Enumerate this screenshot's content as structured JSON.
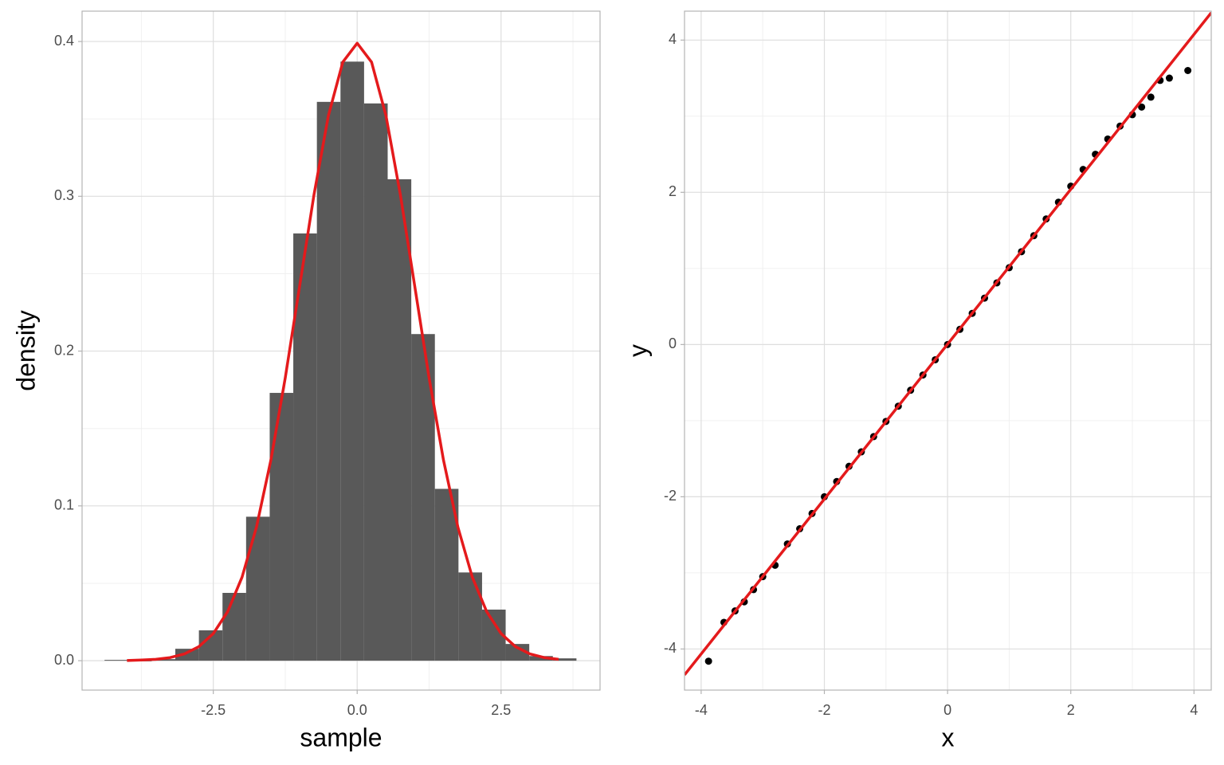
{
  "chart_data": [
    {
      "type": "histogram",
      "x_label": "sample",
      "y_label": "density",
      "bins": [
        -4.39,
        -3.98,
        -3.57,
        -3.16,
        -2.75,
        -2.34,
        -1.93,
        -1.52,
        -1.11,
        -0.7,
        -0.29,
        0.12,
        0.53,
        0.94,
        1.35,
        1.76,
        2.17,
        2.58,
        2.99,
        3.4,
        3.81
      ],
      "values": [
        0.0005,
        0,
        0.001,
        0.0077,
        0.0196,
        0.0438,
        0.093,
        0.173,
        0.276,
        0.361,
        0.387,
        0.36,
        0.311,
        0.211,
        0.111,
        0.057,
        0.033,
        0.0108,
        0.003,
        0.0015
      ],
      "color": "#595959",
      "curve": {
        "color": "#e41a1c",
        "x": [
          -4,
          -3.75,
          -3.5,
          -3.25,
          -3,
          -2.75,
          -2.5,
          -2.25,
          -2,
          -1.75,
          -1.5,
          -1.25,
          -1,
          -0.75,
          -0.5,
          -0.25,
          0,
          0.25,
          0.5,
          0.75,
          1,
          1.25,
          1.5,
          1.75,
          2,
          2.25,
          2.5,
          2.75,
          3,
          3.25,
          3.5
        ],
        "y": [
          0.0001,
          0.0004,
          0.0009,
          0.002,
          0.0044,
          0.0091,
          0.0175,
          0.0317,
          0.054,
          0.0863,
          0.1295,
          0.1826,
          0.242,
          0.3011,
          0.3521,
          0.3867,
          0.3989,
          0.3867,
          0.3521,
          0.3011,
          0.242,
          0.1826,
          0.1295,
          0.0863,
          0.054,
          0.0317,
          0.0175,
          0.0091,
          0.0044,
          0.002,
          0.0009
        ]
      },
      "xlim": [
        -4.78,
        4.22
      ],
      "ylim": [
        -0.019,
        0.4196
      ],
      "xticks": [
        -2.5,
        {
          "value": 0,
          "label": "0.0"
        },
        2.5
      ],
      "yticks": [
        {
          "value": 0,
          "label": "0.0"
        },
        0.1,
        0.2,
        0.3,
        0.4
      ],
      "grid": true
    },
    {
      "type": "scatter",
      "x_label": "x",
      "y_label": "y",
      "color": "#000000",
      "x": [
        -3.88,
        -3.63,
        -3.45,
        -3.3,
        -3.15,
        -3.0,
        -2.8,
        -2.6,
        -2.4,
        -2.2,
        -2.0,
        -1.8,
        -1.6,
        -1.4,
        -1.2,
        -1.0,
        -0.8,
        -0.6,
        -0.4,
        -0.2,
        0,
        0.2,
        0.4,
        0.6,
        0.8,
        1.0,
        1.2,
        1.4,
        1.6,
        1.8,
        2.0,
        2.2,
        2.4,
        2.6,
        2.8,
        3.0,
        3.15,
        3.3,
        3.45,
        3.6,
        3.9
      ],
      "values": [
        -4.16,
        -3.65,
        -3.5,
        -3.38,
        -3.22,
        -3.05,
        -2.9,
        -2.62,
        -2.42,
        -2.22,
        -2.0,
        -1.8,
        -1.6,
        -1.41,
        -1.21,
        -1.01,
        -0.81,
        -0.6,
        -0.4,
        -0.2,
        0,
        0.2,
        0.41,
        0.61,
        0.81,
        1.01,
        1.22,
        1.43,
        1.65,
        1.87,
        2.08,
        2.3,
        2.5,
        2.7,
        2.87,
        3.02,
        3.12,
        3.25,
        3.47,
        3.5,
        3.6
      ],
      "line": {
        "color": "#e41a1c",
        "x": [
          -4.27,
          4.28
        ],
        "y": [
          -4.34,
          4.36
        ]
      },
      "xlim": [
        -4.27,
        4.28
      ],
      "ylim": [
        -4.54,
        4.38
      ],
      "xticks": [
        -4,
        -2,
        0,
        2,
        4
      ],
      "yticks": [
        -4,
        -2,
        0,
        2,
        4
      ],
      "grid": true
    }
  ]
}
